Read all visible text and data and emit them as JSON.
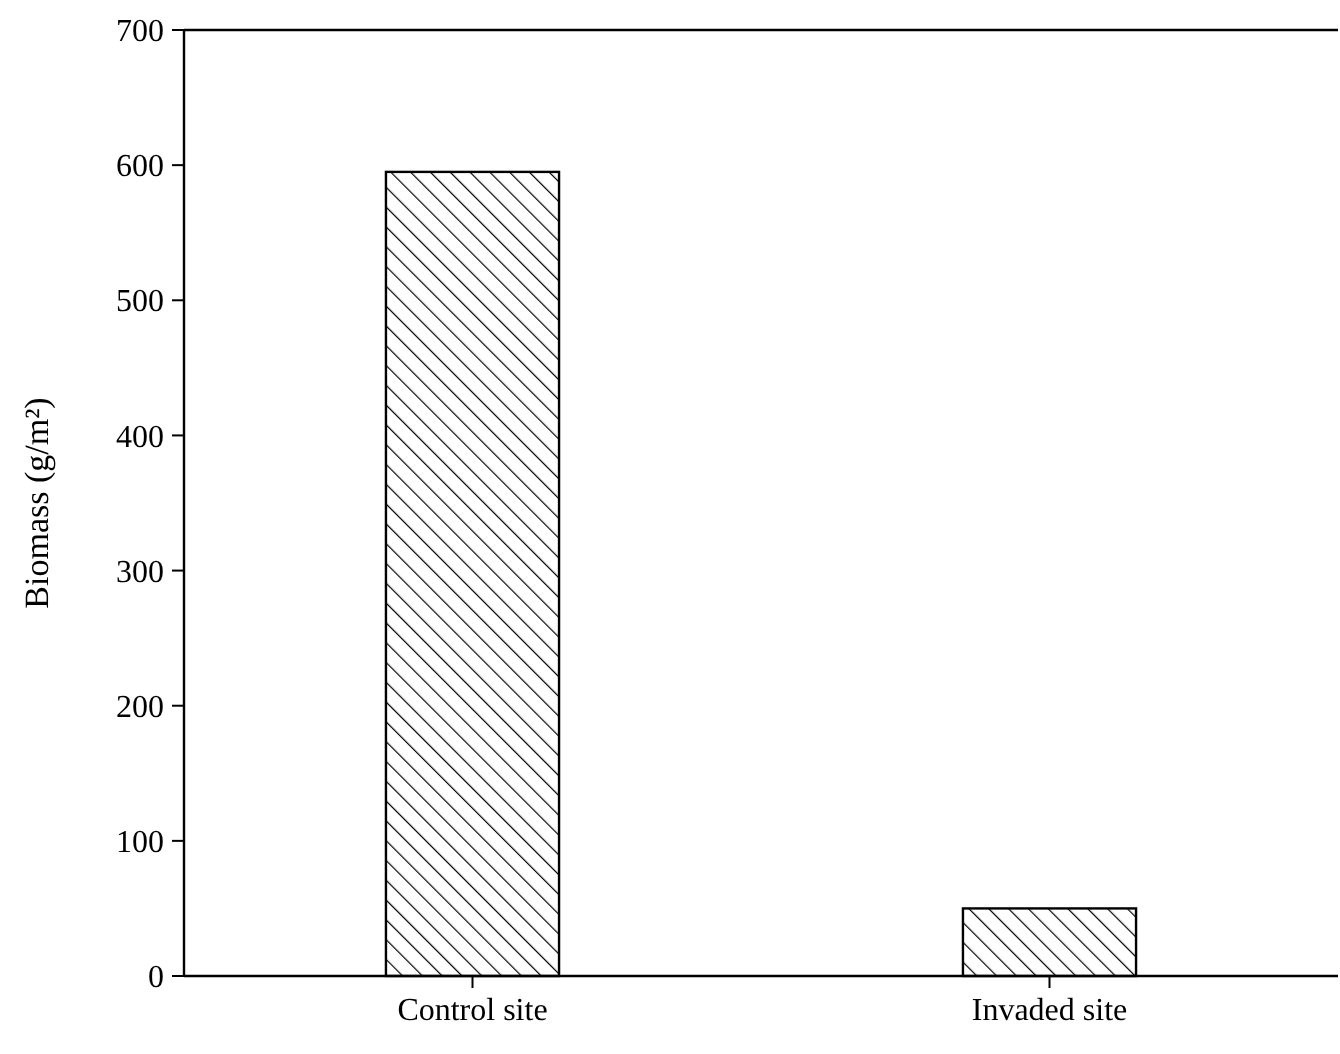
{
  "chart_data": {
    "type": "bar",
    "ylabel": "Biomass (g/m²)",
    "categories": [
      "Control site",
      "Invaded site"
    ],
    "series": [
      {
        "color": "#000000",
        "values": [
          595,
          50
        ]
      }
    ],
    "ylim": [
      0,
      700
    ],
    "yticks": [
      0,
      100,
      200,
      300,
      400,
      500,
      600,
      700
    ],
    "grid": false
  }
}
